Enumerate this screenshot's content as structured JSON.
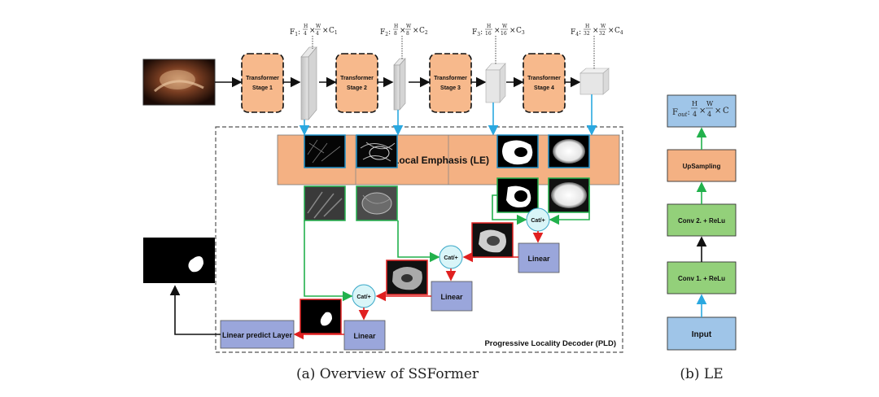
{
  "overview": {
    "stages": [
      {
        "label": "Transformer\nStage 1"
      },
      {
        "label": "Transformer\nStage 2"
      },
      {
        "label": "Transformer\nStage 3"
      },
      {
        "label": "Transformer\nStage 4"
      }
    ],
    "features": [
      {
        "name": "F",
        "sub": "1",
        "h": "4",
        "w": "4",
        "c": "C",
        "csub": "1"
      },
      {
        "name": "F",
        "sub": "2",
        "h": "8",
        "w": "8",
        "c": "C",
        "csub": "2"
      },
      {
        "name": "F",
        "sub": "3",
        "h": "16",
        "w": "16",
        "c": "C",
        "csub": "3"
      },
      {
        "name": "F",
        "sub": "4",
        "h": "32",
        "w": "32",
        "c": "C",
        "csub": "4"
      }
    ],
    "frac_top": "H",
    "frac_top_w": "W",
    "times": "×",
    "le_label": "Local Emphasis (LE)",
    "cat_label": "Cat/+",
    "linear_label": "Linear",
    "predict_label": "Linear predict Layer",
    "pld_label": "Progressive Locality Decoder (PLD)",
    "caption": "(a) Overview of SSFormer"
  },
  "le": {
    "fout_prefix": "F",
    "fout_sub": "out",
    "fout_h": "H",
    "fout_w": "W",
    "fout_den": "4",
    "fout_c": "C",
    "upsampling": "UpSampling",
    "conv2": "Conv 2. + ReLu",
    "conv1": "Conv 1. + ReLu",
    "input": "Input",
    "caption": "(b) LE"
  },
  "colors": {
    "orange": "#f7b98c",
    "blue_box": "#9aa6db",
    "le_block": "#f4b183",
    "green_box": "#93d07a",
    "light_blue": "#9fc5e8",
    "green_arrow": "#22b14c",
    "red_arrow": "#e02020",
    "blue_arrow": "#2aa8e0",
    "cat_fill": "#d9f5f8"
  }
}
